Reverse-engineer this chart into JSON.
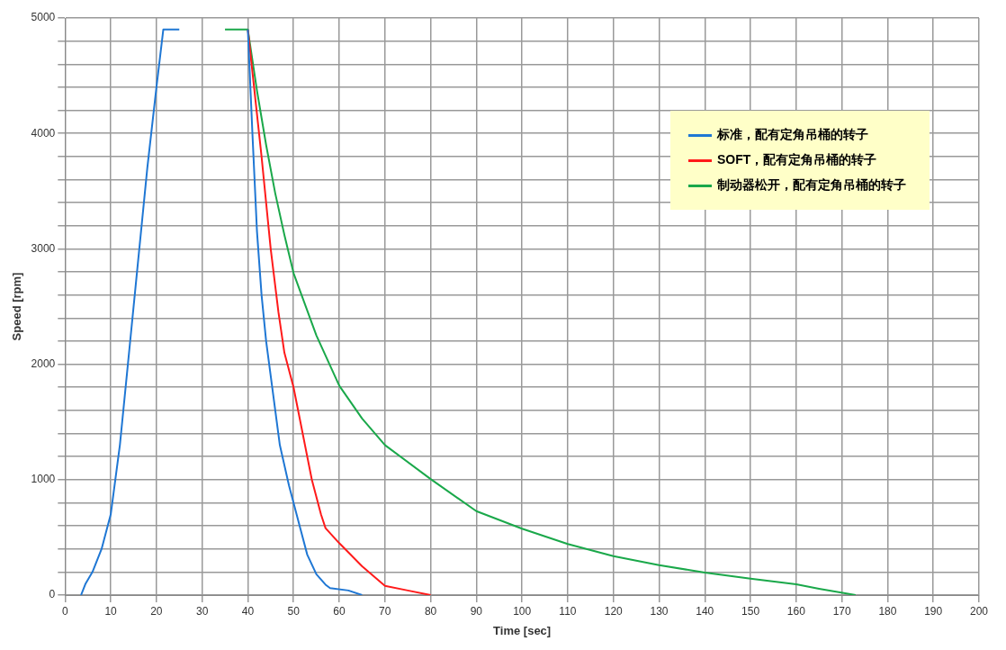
{
  "chart_data": {
    "type": "line",
    "xlabel": "Time [sec]",
    "ylabel": "Speed [rpm]",
    "xlim": [
      0,
      200
    ],
    "xticks": [
      0,
      10,
      20,
      30,
      40,
      50,
      60,
      70,
      80,
      90,
      100,
      110,
      120,
      130,
      140,
      150,
      160,
      170,
      180,
      190,
      200
    ],
    "ylim": [
      0,
      5000
    ],
    "yticks": [
      0,
      {
        "value": 200,
        "label": null
      },
      {
        "value": 400,
        "label": null
      },
      {
        "value": 600,
        "label": null
      },
      {
        "value": 800,
        "label": null
      },
      1000,
      {
        "value": 1200,
        "label": null
      },
      {
        "value": 1400,
        "label": null
      },
      {
        "value": 1600,
        "label": null
      },
      {
        "value": 1800,
        "label": null
      },
      2000,
      {
        "value": 2200,
        "label": null
      },
      {
        "value": 2400,
        "label": null
      },
      {
        "value": 2600,
        "label": null
      },
      {
        "value": 2800,
        "label": null
      },
      3000,
      {
        "value": 3200,
        "label": null
      },
      {
        "value": 3400,
        "label": null
      },
      {
        "value": 3600,
        "label": null
      },
      {
        "value": 3800,
        "label": null
      },
      4000,
      {
        "value": 4200,
        "label": null
      },
      {
        "value": 4400,
        "label": null
      },
      {
        "value": 4600,
        "label": null
      },
      {
        "value": 4800,
        "label": null
      },
      5000
    ],
    "grid": true,
    "legend": "top right",
    "marker": "none",
    "line_style": "solid",
    "series": [
      {
        "name": "标准，配有定角吊桶的转子",
        "color": "#1f77d4",
        "x": [
          3.5,
          4.5,
          6,
          8,
          10,
          12,
          14,
          16,
          18,
          20,
          21.5,
          25,
          null,
          40,
          41,
          42,
          43,
          44,
          46,
          47,
          49,
          51,
          53,
          55,
          57,
          58,
          62,
          65
        ],
        "values": [
          0,
          100,
          200,
          400,
          700,
          1300,
          2100,
          2900,
          3700,
          4400,
          4900,
          4900,
          null,
          4900,
          4000,
          3150,
          2600,
          2200,
          1600,
          1300,
          950,
          650,
          350,
          180,
          90,
          60,
          40,
          0
        ]
      },
      {
        "name": "SOFT，配有定角吊桶的转子",
        "color": "#ff1a1a",
        "x": [
          40,
          43,
          45,
          46.7,
          48,
          50,
          52,
          54,
          56,
          57,
          60,
          65,
          70,
          75,
          80
        ],
        "values": [
          4900,
          3800,
          3000,
          2450,
          2100,
          1800,
          1400,
          1000,
          700,
          580,
          450,
          250,
          80,
          40,
          0
        ]
      },
      {
        "name": "制动器松开，配有定角吊桶的转子",
        "color": "#1aa84a",
        "x": [
          35,
          40,
          42,
          44,
          46,
          48,
          50,
          55,
          60,
          65,
          70,
          80,
          90,
          100,
          110,
          120,
          130,
          140,
          150,
          160,
          165,
          173
        ],
        "values": [
          4900,
          4900,
          4370,
          3900,
          3480,
          3120,
          2790,
          2250,
          1815,
          1530,
          1300,
          1005,
          727,
          575,
          443,
          337,
          259,
          195,
          143,
          93,
          55,
          0
        ]
      }
    ]
  }
}
